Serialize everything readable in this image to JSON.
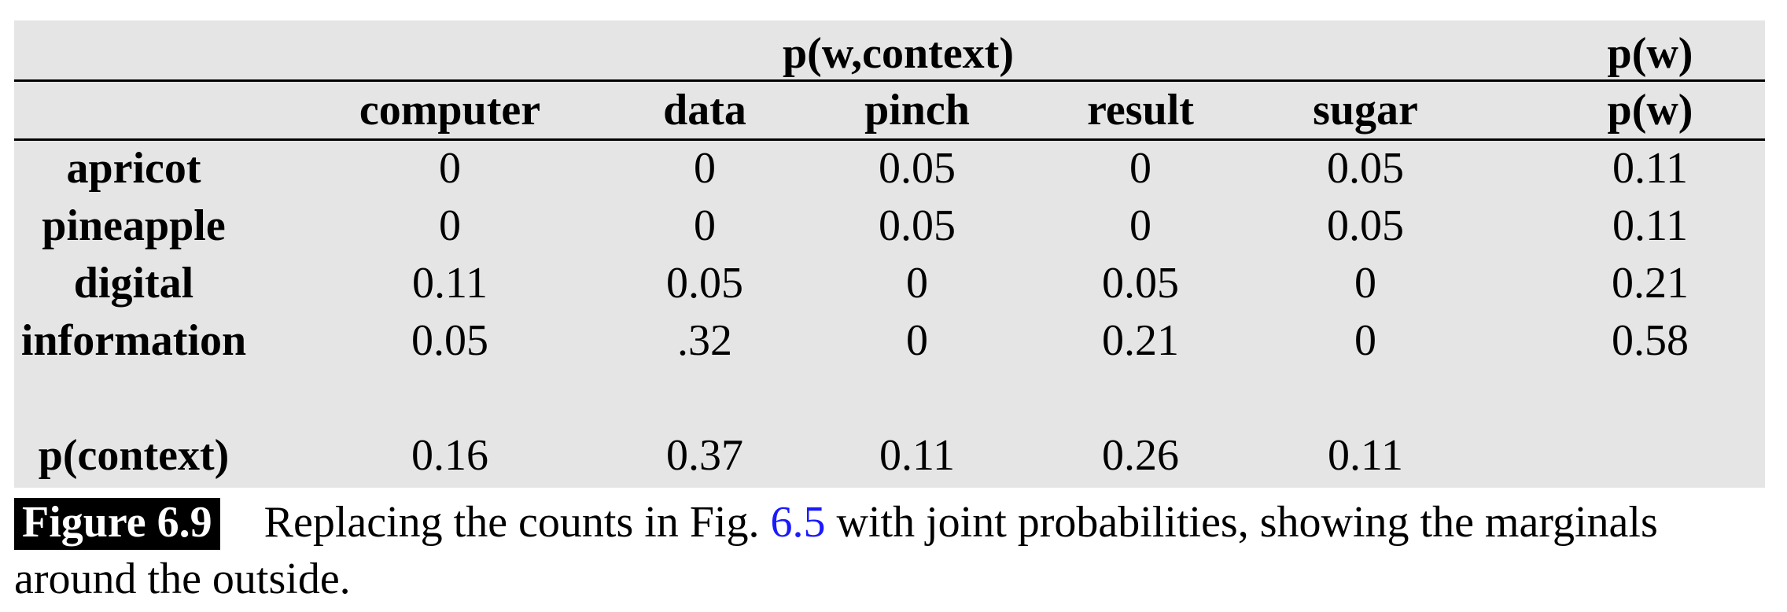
{
  "table": {
    "group_header": "p(w,context)",
    "marginal_header": "p(w)",
    "columns": [
      "computer",
      "data",
      "pinch",
      "result",
      "sugar",
      "p(w)"
    ],
    "rows": [
      {
        "label": "apricot",
        "values": [
          "0",
          "0",
          "0.05",
          "0",
          "0.05",
          "0.11"
        ]
      },
      {
        "label": "pineapple",
        "values": [
          "0",
          "0",
          "0.05",
          "0",
          "0.05",
          "0.11"
        ]
      },
      {
        "label": "digital",
        "values": [
          "0.11",
          "0.05",
          "0",
          "0.05",
          "0",
          "0.21"
        ]
      },
      {
        "label": "information",
        "values": [
          "0.05",
          ".32",
          "0",
          "0.21",
          "0",
          "0.58"
        ]
      }
    ],
    "context_row": {
      "label": "p(context)",
      "values": [
        "0.16",
        "0.37",
        "0.11",
        "0.26",
        "0.11"
      ]
    }
  },
  "caption": {
    "label": "Figure 6.9",
    "text_before": "Replacing the counts in Fig. ",
    "link": "6.5",
    "text_after": " with joint probabilities, showing the marginals around the outside."
  }
}
